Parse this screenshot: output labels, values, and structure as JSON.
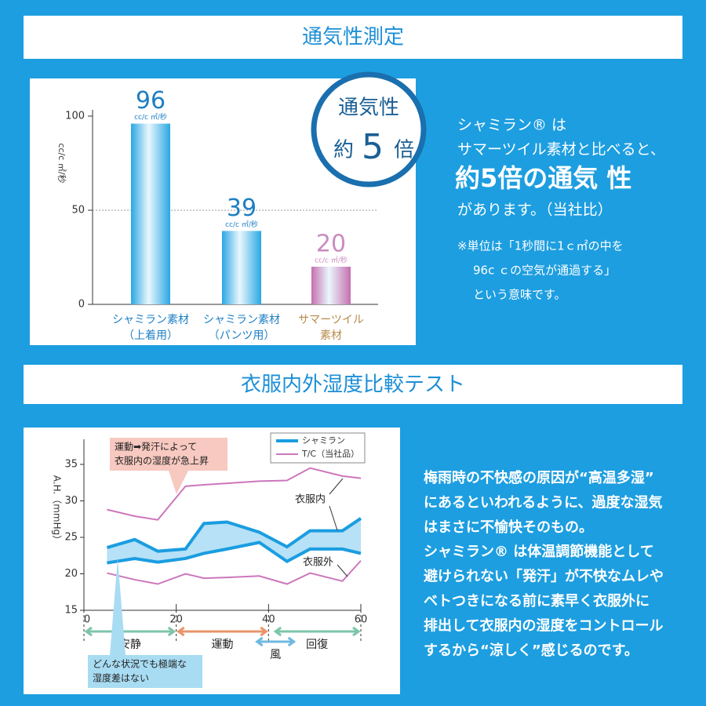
{
  "headings": [
    "通気性測定",
    "衣服内外湿度比較テスト"
  ],
  "badge": {
    "line1": "通気性",
    "prefix": "約",
    "number": "5",
    "suffix": "倍"
  },
  "intro": {
    "lines": [
      "シャミラン® は",
      "サマーツイル素材と比べると、"
    ],
    "highlight": "約5倍の通気 性",
    "after": "があります。（当社比）"
  },
  "note": [
    "※単位は「1秒間に1ｃ㎡の中を",
    "96c ｃの空気が通過する」",
    "という意味です。"
  ],
  "description": [
    "梅雨時の不快感の原因が“高温多湿”",
    "にあるといわれるように、過度な湿気",
    "はまさに不愉快そのもの。",
    "シャミラン® は体温調節機能として",
    "避けられない「発汗」が不快なムレや",
    "ベトつきになる前に素早く衣服外に",
    "排出して衣服内の湿度をコントロール",
    "するから“涼しく”感じるのです。"
  ],
  "chart_data": [
    {
      "type": "bar",
      "y_label": "cc/c ㎡/秒",
      "unit_label": "cc/c ㎡/秒",
      "categories": [
        [
          "シャミラン素材",
          "（上着用）"
        ],
        [
          "シャミラン素材",
          "（パンツ用）"
        ],
        [
          "サマーツイル",
          "素材"
        ]
      ],
      "values": [
        96,
        39,
        20
      ],
      "colors": [
        "#2aa7e3",
        "#2aa7e3",
        "#c56fb0"
      ],
      "label_colors": [
        "#1d7fc4",
        "#1d7fc4",
        "#c98cc0"
      ],
      "category_colors": [
        "#1d7fc4",
        "#1d7fc4",
        "#b88a4a"
      ],
      "ylim": [
        0,
        100
      ],
      "yticks": [
        0,
        50,
        100
      ]
    },
    {
      "type": "line",
      "y_label": "A.H.（mmHg）",
      "x": [
        5,
        11,
        16,
        22,
        26,
        31,
        38,
        44,
        49,
        56,
        60
      ],
      "xlim": [
        0,
        60
      ],
      "xticks": [
        0,
        20,
        40,
        60
      ],
      "ylim": [
        15,
        35
      ],
      "yticks": [
        15,
        20,
        25,
        30,
        35
      ],
      "series": [
        {
          "name": "シャミラン",
          "color": "#1a9de0",
          "inside": [
            23.6,
            24.7,
            23.1,
            23.4,
            26.9,
            27.1,
            25.7,
            23.7,
            25.9,
            25.9,
            27.6
          ],
          "outside": [
            21.5,
            22.1,
            21.6,
            22.1,
            22.8,
            23.4,
            24.3,
            21.7,
            23.4,
            23.4,
            22.8
          ]
        },
        {
          "name": "T/C（当社品）",
          "color": "#cc77bb",
          "inside": [
            28.8,
            27.9,
            27.4,
            32.0,
            32.2,
            32.4,
            32.7,
            32.8,
            34.5,
            33.4,
            33.1
          ],
          "outside": [
            20.1,
            19.2,
            18.6,
            20.0,
            19.4,
            19.5,
            19.7,
            18.6,
            20.1,
            19.0,
            21.8
          ]
        }
      ],
      "band_color": "#a9dcf5",
      "region_labels": {
        "inside": "衣服内",
        "outside": "衣服外"
      },
      "phases": [
        {
          "label": "安静",
          "start": 0,
          "end": 20,
          "color": "#7cc5a8"
        },
        {
          "label": "運動",
          "start": 20,
          "end": 40,
          "color": "#e8946a"
        },
        {
          "label": "風",
          "start": 37,
          "end": 46,
          "color": "#6fb8e0"
        },
        {
          "label": "回復",
          "start": 41,
          "end": 60,
          "color": "#7cc5a8"
        }
      ],
      "annotations": [
        {
          "lines": [
            "運動➡発汗によって",
            "衣服内の湿度が急上昇"
          ],
          "color": "#f7c9c0"
        },
        {
          "lines": [
            "どんな状況でも極端な",
            "湿度差はない"
          ],
          "color": "#a8dcf3"
        }
      ]
    }
  ]
}
